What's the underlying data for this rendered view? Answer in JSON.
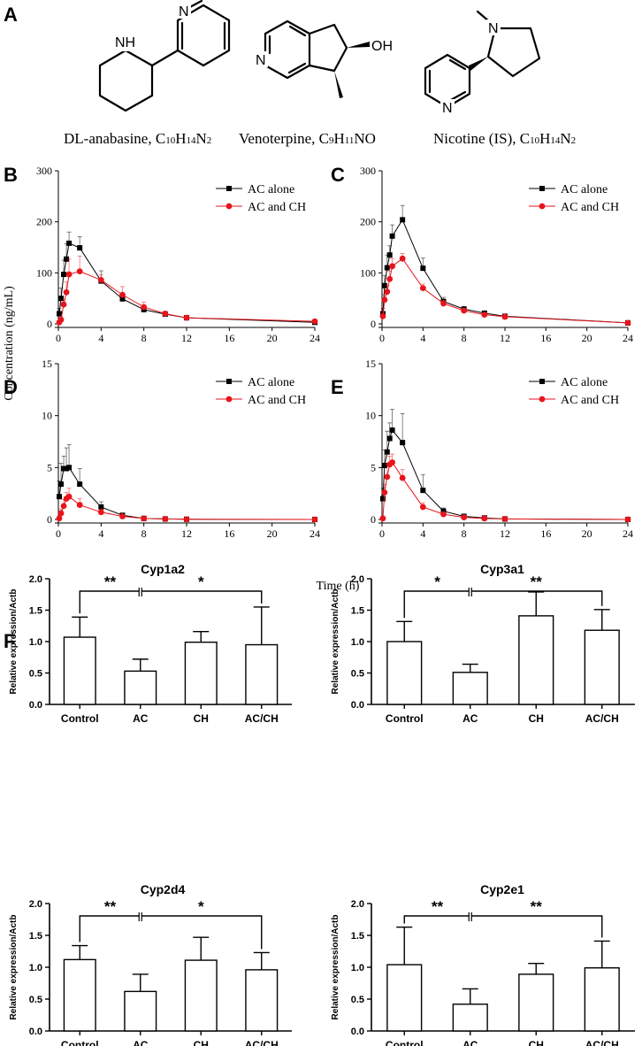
{
  "panels": {
    "A": "A",
    "B": "B",
    "C": "C",
    "D": "D",
    "E": "E",
    "F": "F"
  },
  "structures": [
    {
      "name": "DL-anabasine, C10H14N2",
      "label_base": "DL-anabasine, C",
      "parts": [
        "10",
        "H",
        "14",
        "N",
        "2"
      ]
    },
    {
      "name": "Venoterpine, C9H11NO",
      "label_base": "Venoterpine, C",
      "parts": [
        "9",
        "H",
        "11",
        "NO"
      ]
    },
    {
      "name": "Nicotine (IS), C10H14N2",
      "label_base": "Nicotine (IS), C",
      "parts": [
        "10",
        "H",
        "14",
        "N",
        "2"
      ]
    }
  ],
  "atoms": {
    "nh": "NH",
    "n": "N",
    "oh": "OH"
  },
  "pk_axes": {
    "ylabel": "Concentration (ng/mL)",
    "xlabel": "Time (h)",
    "xticks": [
      0,
      4,
      8,
      12,
      16,
      20,
      24
    ]
  },
  "colors": {
    "series1": "#000000",
    "series2": "#e8141c"
  },
  "chart_data": [
    {
      "id": "B",
      "type": "line",
      "ylim": [
        0,
        300
      ],
      "yticks": [
        0,
        100,
        200,
        300
      ],
      "xlim": [
        0,
        24
      ],
      "legend_position": "top-right",
      "series": [
        {
          "name": "AC alone",
          "marker": "square",
          "color": "#000000",
          "x": [
            0.083,
            0.25,
            0.5,
            0.75,
            1,
            2,
            4,
            6,
            8,
            10,
            12,
            24
          ],
          "y": [
            20,
            50,
            97,
            127,
            158,
            149,
            84,
            49,
            28,
            19,
            12,
            3
          ],
          "err": [
            10,
            20,
            28,
            30,
            22,
            22,
            20,
            8,
            5,
            4,
            3,
            2
          ]
        },
        {
          "name": "AC and CH",
          "marker": "circle",
          "color": "#e8141c",
          "x": [
            0.083,
            0.25,
            0.5,
            0.75,
            1,
            2,
            4,
            6,
            8,
            10,
            12,
            24
          ],
          "y": [
            3,
            8,
            38,
            62,
            97,
            103,
            86,
            57,
            33,
            20,
            12,
            5
          ],
          "err": [
            3,
            6,
            10,
            20,
            30,
            30,
            10,
            16,
            10,
            5,
            4,
            2
          ]
        }
      ]
    },
    {
      "id": "C",
      "type": "line",
      "ylim": [
        0,
        300
      ],
      "yticks": [
        0,
        100,
        200,
        300
      ],
      "xlim": [
        0,
        24
      ],
      "legend_position": "top-right",
      "series": [
        {
          "name": "AC alone",
          "marker": "square",
          "color": "#000000",
          "x": [
            0.083,
            0.25,
            0.5,
            0.75,
            1,
            2,
            4,
            6,
            8,
            10,
            12,
            24
          ],
          "y": [
            20,
            75,
            110,
            135,
            172,
            204,
            109,
            44,
            29,
            21,
            15,
            2
          ],
          "err": [
            10,
            20,
            25,
            18,
            22,
            28,
            20,
            8,
            5,
            4,
            3,
            2
          ]
        },
        {
          "name": "AC and CH",
          "marker": "circle",
          "color": "#e8141c",
          "x": [
            0.083,
            0.25,
            0.5,
            0.75,
            1,
            2,
            4,
            6,
            8,
            10,
            12,
            24
          ],
          "y": [
            15,
            47,
            63,
            88,
            113,
            128,
            70,
            40,
            26,
            18,
            14,
            2
          ],
          "err": [
            8,
            10,
            12,
            15,
            15,
            10,
            8,
            6,
            5,
            4,
            3,
            2
          ]
        }
      ]
    },
    {
      "id": "D",
      "type": "line",
      "ylim": [
        0,
        15
      ],
      "yticks": [
        0,
        5,
        10,
        15
      ],
      "xlim": [
        0,
        24
      ],
      "legend_position": "top-right",
      "series": [
        {
          "name": "AC alone",
          "marker": "square",
          "color": "#000000",
          "x": [
            0.083,
            0.25,
            0.5,
            0.75,
            1,
            2,
            4,
            6,
            8,
            10,
            12,
            24
          ],
          "y": [
            2.2,
            3.4,
            4.9,
            4.9,
            5.0,
            3.4,
            1.2,
            0.4,
            0.1,
            0.05,
            0.02,
            0
          ],
          "err": [
            1.5,
            2.0,
            1.2,
            2.0,
            2.2,
            1.5,
            0.5,
            0.2,
            0.1,
            0.05,
            0.02,
            0
          ]
        },
        {
          "name": "AC and CH",
          "marker": "circle",
          "color": "#e8141c",
          "x": [
            0.083,
            0.25,
            0.5,
            0.75,
            1,
            2,
            4,
            6,
            8,
            10,
            12,
            24
          ],
          "y": [
            0.1,
            0.6,
            1.3,
            2.0,
            2.2,
            1.4,
            0.7,
            0.3,
            0.1,
            0.05,
            0.02,
            0
          ],
          "err": [
            0.1,
            0.4,
            0.6,
            0.6,
            0.8,
            0.6,
            0.3,
            0.1,
            0.05,
            0.02,
            0.01,
            0
          ]
        }
      ]
    },
    {
      "id": "E",
      "type": "line",
      "ylim": [
        0,
        15
      ],
      "yticks": [
        0,
        5,
        10,
        15
      ],
      "xlim": [
        0,
        24
      ],
      "legend_position": "top-right",
      "series": [
        {
          "name": "AC alone",
          "marker": "square",
          "color": "#000000",
          "x": [
            0.083,
            0.25,
            0.5,
            0.75,
            1,
            2,
            4,
            6,
            8,
            10,
            12,
            24
          ],
          "y": [
            2.0,
            5.2,
            6.5,
            7.8,
            8.6,
            7.4,
            2.8,
            0.8,
            0.3,
            0.15,
            0.05,
            0
          ],
          "err": [
            1.0,
            1.5,
            2.0,
            1.5,
            2.0,
            2.8,
            1.5,
            0.3,
            0.1,
            0.1,
            0.05,
            0
          ]
        },
        {
          "name": "AC and CH",
          "marker": "circle",
          "color": "#e8141c",
          "x": [
            0.083,
            0.25,
            0.5,
            0.75,
            1,
            2,
            4,
            6,
            8,
            10,
            12,
            24
          ],
          "y": [
            0.1,
            2.6,
            4.1,
            5.3,
            5.5,
            4.0,
            1.2,
            0.5,
            0.2,
            0.1,
            0.05,
            0
          ],
          "err": [
            0.1,
            0.8,
            1.2,
            0.8,
            0.8,
            0.8,
            0.4,
            0.2,
            0.1,
            0.05,
            0.02,
            0
          ]
        }
      ]
    },
    {
      "id": "cyp1a2",
      "type": "bar",
      "title": "Cyp1a2",
      "ylabel": "Relative expression/Actb",
      "categories": [
        "Control",
        "AC",
        "CH",
        "AC/CH"
      ],
      "values": [
        1.07,
        0.53,
        0.99,
        0.95
      ],
      "err": [
        0.32,
        0.19,
        0.17,
        0.6
      ],
      "ylim": [
        0,
        2.0
      ],
      "yticks": [
        "0.0",
        "0.5",
        "1.0",
        "1.5",
        "2.0"
      ],
      "sig_left": "**",
      "sig_right": "*"
    },
    {
      "id": "cyp3a1",
      "type": "bar",
      "title": "Cyp3a1",
      "ylabel": "Relative expression/Actb",
      "categories": [
        "Control",
        "AC",
        "CH",
        "AC/CH"
      ],
      "values": [
        1.0,
        0.51,
        1.41,
        1.18
      ],
      "err": [
        0.32,
        0.13,
        0.38,
        0.33
      ],
      "ylim": [
        0,
        2.0
      ],
      "yticks": [
        "0.0",
        "0.5",
        "1.0",
        "1.5",
        "2.0"
      ],
      "sig_left": "*",
      "sig_right": "**"
    },
    {
      "id": "cyp2d4",
      "type": "bar",
      "title": "Cyp2d4",
      "ylabel": "Relative expression/Actb",
      "categories": [
        "Control",
        "AC",
        "CH",
        "AC/CH"
      ],
      "values": [
        1.12,
        0.62,
        1.11,
        0.96
      ],
      "err": [
        0.22,
        0.27,
        0.36,
        0.27
      ],
      "ylim": [
        0,
        2.0
      ],
      "yticks": [
        "0.0",
        "0.5",
        "1.0",
        "1.5",
        "2.0"
      ],
      "sig_left": "**",
      "sig_right": "*"
    },
    {
      "id": "cyp2e1",
      "type": "bar",
      "title": "Cyp2e1",
      "ylabel": "Relative expression/Actb",
      "categories": [
        "Control",
        "AC",
        "CH",
        "AC/CH"
      ],
      "values": [
        1.04,
        0.42,
        0.89,
        0.99
      ],
      "err": [
        0.59,
        0.24,
        0.17,
        0.42
      ],
      "ylim": [
        0,
        2.0
      ],
      "yticks": [
        "0.0",
        "0.5",
        "1.0",
        "1.5",
        "2.0"
      ],
      "sig_left": "**",
      "sig_right": "**"
    }
  ]
}
